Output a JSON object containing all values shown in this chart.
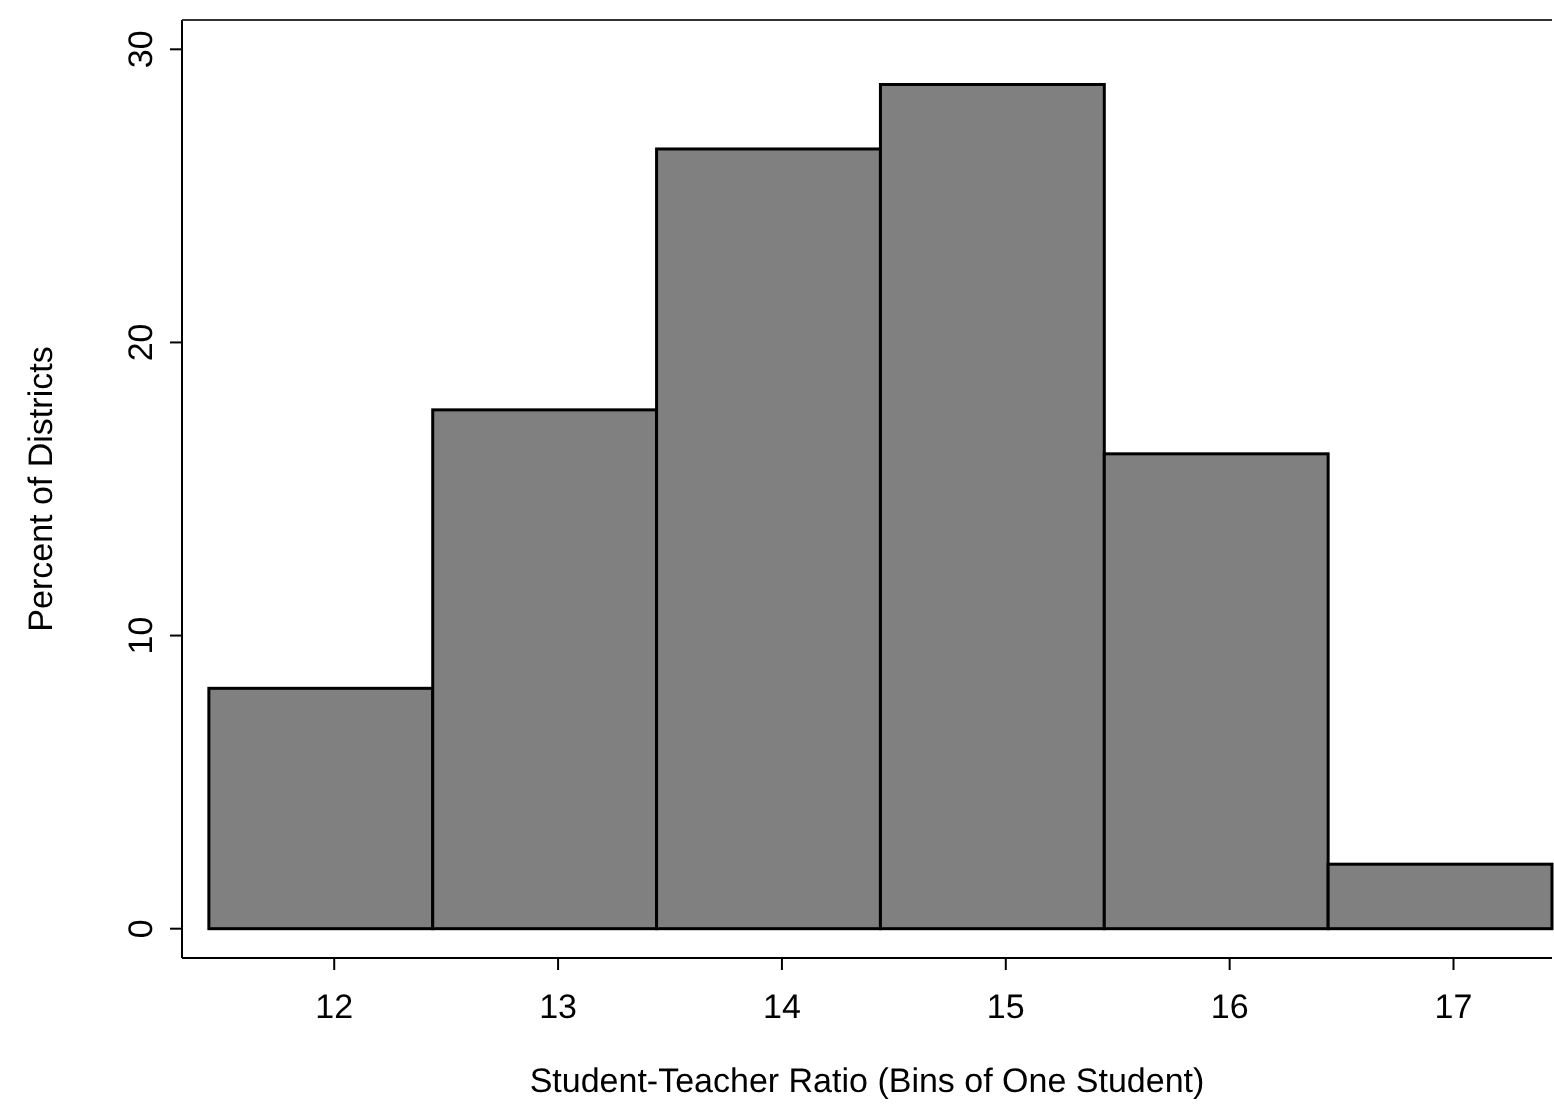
{
  "chart_data": {
    "type": "histogram",
    "xlabel": "Student-Teacher Ratio (Bins of One Student)",
    "ylabel": "Percent of Districts",
    "bins": [
      11.44,
      12.44,
      13.44,
      14.44,
      15.44,
      16.44,
      17.44
    ],
    "values": [
      8.2,
      17.7,
      26.6,
      28.8,
      16.2,
      2.2
    ],
    "color": "#808080",
    "xlim": [
      11.32,
      17.44
    ],
    "xticks": [
      12,
      13,
      14,
      15,
      16,
      17
    ],
    "ylim": [
      -1,
      31
    ],
    "yticks": [
      0,
      10,
      20,
      30
    ]
  }
}
